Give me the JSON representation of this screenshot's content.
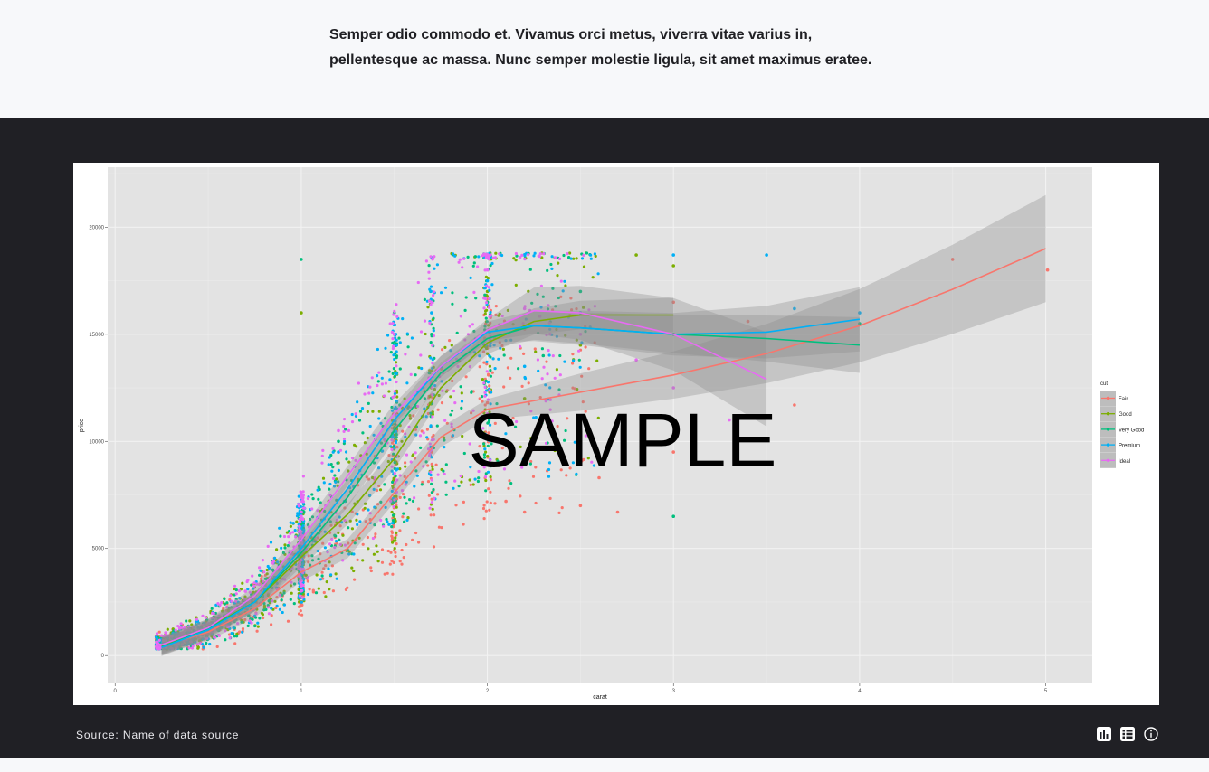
{
  "intro": {
    "line1": "Semper odio commodo et. Vivamus orci metus, viverra vitae varius in,",
    "line2": "pellentesque ac massa. Nunc semper molestie ligula, sit amet maximus eratee."
  },
  "watermark": "SAMPLE",
  "source": "Source: Name of data source",
  "icons": [
    "bar-chart-icon",
    "table-list-icon",
    "info-icon"
  ],
  "colors": {
    "band": "#202025",
    "panel": "#e3e3e3",
    "grid": "#f2f2f2",
    "Fair": "#f8766d",
    "Good": "#7cae00",
    "Very Good": "#00bf7d",
    "Premium": "#00b0f6",
    "Ideal": "#e76bf3"
  },
  "chart_data": {
    "type": "scatter",
    "title": "",
    "xlabel": "carat",
    "ylabel": "price",
    "xlim": [
      -0.04,
      5.25
    ],
    "ylim": [
      -1300,
      22800
    ],
    "x_ticks": [
      0,
      1,
      2,
      3,
      4,
      5
    ],
    "y_ticks": [
      0,
      5000,
      10000,
      15000,
      20000
    ],
    "grid": true,
    "legend_title": "cut",
    "legend_position": "right",
    "smooth": true,
    "series": [
      {
        "name": "Fair",
        "color": "#f8766d",
        "smooth": [
          [
            0.25,
            450
          ],
          [
            0.5,
            1100
          ],
          [
            0.75,
            2200
          ],
          [
            1.0,
            3900
          ],
          [
            1.25,
            5000
          ],
          [
            1.5,
            7600
          ],
          [
            1.75,
            10200
          ],
          [
            2.0,
            11500
          ],
          [
            2.5,
            12300
          ],
          [
            3.0,
            13100
          ],
          [
            3.5,
            14100
          ],
          [
            4.0,
            15400
          ],
          [
            4.5,
            17100
          ],
          [
            5.0,
            19000
          ]
        ],
        "band": [
          0.25,
          400,
          4,
          12,
          5.0,
          2500
        ],
        "points": [
          [
            0.3,
            500
          ],
          [
            0.5,
            1000
          ],
          [
            0.7,
            2200
          ],
          [
            0.9,
            2800
          ],
          [
            1.0,
            4500
          ],
          [
            1.2,
            6200
          ],
          [
            1.5,
            8000
          ],
          [
            1.7,
            9500
          ],
          [
            2.0,
            11800
          ],
          [
            2.1,
            7200
          ],
          [
            2.2,
            6700
          ],
          [
            2.5,
            7000
          ],
          [
            2.7,
            6700
          ],
          [
            3.0,
            9500
          ],
          [
            3.0,
            16500
          ],
          [
            3.4,
            15600
          ],
          [
            3.65,
            11700
          ],
          [
            4.5,
            18500
          ],
          [
            5.01,
            18000
          ],
          [
            2.6,
            8300
          ]
        ]
      },
      {
        "name": "Good",
        "color": "#7cae00",
        "smooth": [
          [
            0.25,
            450
          ],
          [
            0.5,
            1300
          ],
          [
            0.75,
            2500
          ],
          [
            1.0,
            4600
          ],
          [
            1.25,
            6600
          ],
          [
            1.5,
            9200
          ],
          [
            1.75,
            12500
          ],
          [
            2.0,
            14600
          ],
          [
            2.25,
            15600
          ],
          [
            2.5,
            15900
          ],
          [
            3.0,
            15900
          ]
        ],
        "band": [
          0.25,
          400,
          4,
          12,
          3.0,
          800
        ],
        "points": [
          [
            0.4,
            900
          ],
          [
            0.7,
            2000
          ],
          [
            1.0,
            5200
          ],
          [
            1.0,
            16000
          ],
          [
            1.2,
            9000
          ],
          [
            1.5,
            15000
          ],
          [
            1.7,
            12500
          ],
          [
            2.0,
            17000
          ],
          [
            2.2,
            12000
          ],
          [
            2.5,
            14500
          ],
          [
            2.8,
            18700
          ],
          [
            3.0,
            18200
          ]
        ]
      },
      {
        "name": "Very Good",
        "color": "#00bf7d",
        "smooth": [
          [
            0.25,
            400
          ],
          [
            0.5,
            1250
          ],
          [
            0.75,
            2500
          ],
          [
            1.0,
            4800
          ],
          [
            1.25,
            7400
          ],
          [
            1.5,
            10500
          ],
          [
            1.75,
            13200
          ],
          [
            2.0,
            14800
          ],
          [
            2.25,
            15400
          ],
          [
            2.5,
            15300
          ],
          [
            3.0,
            15000
          ],
          [
            3.5,
            14800
          ],
          [
            4.0,
            14500
          ]
        ],
        "band": [
          0.25,
          400,
          4,
          12,
          4.0,
          1300
        ],
        "points": [
          [
            0.4,
            1000
          ],
          [
            0.7,
            2500
          ],
          [
            1.0,
            6000
          ],
          [
            1.0,
            18500
          ],
          [
            1.2,
            10000
          ],
          [
            1.5,
            16000
          ],
          [
            1.7,
            15000
          ],
          [
            2.0,
            16500
          ],
          [
            2.3,
            14000
          ],
          [
            2.5,
            17000
          ],
          [
            3.0,
            6500
          ],
          [
            3.0,
            15000
          ],
          [
            4.0,
            15500
          ]
        ]
      },
      {
        "name": "Premium",
        "color": "#00b0f6",
        "smooth": [
          [
            0.25,
            380
          ],
          [
            0.5,
            1200
          ],
          [
            0.75,
            2500
          ],
          [
            1.0,
            5000
          ],
          [
            1.25,
            7800
          ],
          [
            1.5,
            11000
          ],
          [
            1.75,
            13500
          ],
          [
            2.0,
            15100
          ],
          [
            2.25,
            15400
          ],
          [
            2.5,
            15300
          ],
          [
            3.0,
            15000
          ],
          [
            3.5,
            15100
          ],
          [
            4.0,
            15700
          ]
        ],
        "band": [
          0.25,
          400,
          4,
          12,
          4.0,
          1500
        ],
        "points": [
          [
            0.4,
            900
          ],
          [
            0.7,
            2300
          ],
          [
            1.0,
            5500
          ],
          [
            1.2,
            9500
          ],
          [
            1.5,
            14500
          ],
          [
            1.7,
            16000
          ],
          [
            2.0,
            17500
          ],
          [
            2.2,
            13500
          ],
          [
            2.5,
            16000
          ],
          [
            3.0,
            18700
          ],
          [
            3.5,
            18700
          ],
          [
            3.65,
            16200
          ],
          [
            4.0,
            16000
          ]
        ]
      },
      {
        "name": "Ideal",
        "color": "#e76bf3",
        "smooth": [
          [
            0.25,
            500
          ],
          [
            0.5,
            1300
          ],
          [
            0.75,
            2800
          ],
          [
            1.0,
            5400
          ],
          [
            1.25,
            8400
          ],
          [
            1.5,
            11300
          ],
          [
            1.75,
            13500
          ],
          [
            2.0,
            15200
          ],
          [
            2.25,
            16100
          ],
          [
            2.5,
            16000
          ],
          [
            3.0,
            15000
          ],
          [
            3.5,
            12900
          ]
        ],
        "band": [
          0.25,
          400,
          4,
          12,
          3.5,
          2200
        ],
        "points": [
          [
            0.4,
            1200
          ],
          [
            0.7,
            3000
          ],
          [
            1.0,
            6500
          ],
          [
            1.2,
            10500
          ],
          [
            1.5,
            15000
          ],
          [
            1.7,
            16500
          ],
          [
            2.0,
            18000
          ],
          [
            2.2,
            16200
          ],
          [
            2.5,
            15000
          ],
          [
            2.8,
            13800
          ],
          [
            3.0,
            12500
          ],
          [
            3.3,
            11000
          ]
        ]
      }
    ]
  }
}
